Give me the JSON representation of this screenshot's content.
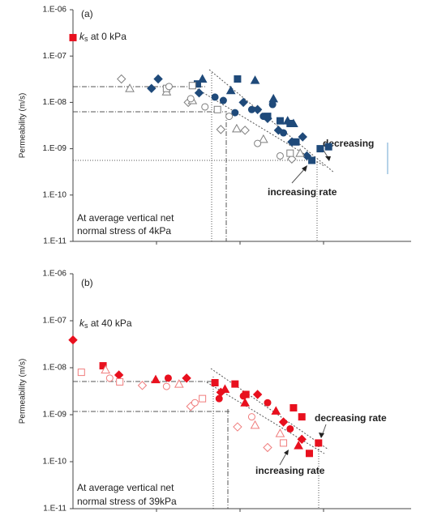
{
  "chart_data": [
    {
      "type": "scatter",
      "panel_label": "(a)",
      "ylabel": "Permeability (m/s)",
      "yscale": "log",
      "ylim": [
        1e-11,
        1e-06
      ],
      "yticks": [
        {
          "value": 1e-11,
          "label": "1.E-11"
        },
        {
          "value": 1e-10,
          "label": "1.E-10"
        },
        {
          "value": 1e-09,
          "label": "1.E-09"
        },
        {
          "value": 1e-08,
          "label": "1.E-08"
        },
        {
          "value": 1e-07,
          "label": "1.E-07"
        },
        {
          "value": 1e-06,
          "label": "1.E-06"
        }
      ],
      "xlim": [
        0,
        4
      ],
      "xticks": [
        1,
        2,
        3
      ],
      "ks_label": {
        "symbol": "k",
        "sub": "s",
        "text": " at 0 kPa"
      },
      "annotations": [
        "decreasing",
        "increasing rate"
      ],
      "note": [
        "At average vertical net",
        "normal stress of 4kPa"
      ],
      "series": [
        {
          "marker": "square",
          "filled": true,
          "color": "#e8101e",
          "x": [
            0
          ],
          "values": [
            2.5e-07
          ]
        },
        {
          "marker": "square",
          "filled": true,
          "color": "#1f4a7a",
          "x": [
            1.49,
            1.97,
            2.33,
            2.48,
            2.6,
            2.67,
            2.96,
            3.06,
            2.86
          ],
          "values": [
            2.5e-08,
            3.2e-08,
            5e-09,
            4e-09,
            3.5e-09,
            1.4e-09,
            1e-09,
            1.1e-09,
            5.6e-10
          ]
        },
        {
          "marker": "diamond",
          "filled": true,
          "color": "#1f4a7a",
          "x": [
            1.02,
            0.94,
            1.51,
            2.04,
            2.21,
            2.33,
            2.46,
            2.62,
            2.75,
            2.8
          ],
          "values": [
            3.2e-08,
            2e-08,
            1.6e-08,
            1e-08,
            7e-09,
            4.5e-09,
            2.5e-09,
            1.4e-09,
            1.8e-09,
            7e-10
          ]
        },
        {
          "marker": "triangle",
          "filled": true,
          "color": "#1f4a7a",
          "x": [
            1.55,
            1.89,
            2.18,
            2.4,
            2.57,
            2.64
          ],
          "values": [
            3.2e-08,
            1.8e-08,
            3e-08,
            1.2e-08,
            4e-09,
            3.5e-09
          ]
        },
        {
          "marker": "circle",
          "filled": true,
          "color": "#1f4a7a",
          "x": [
            1.7,
            1.8,
            1.94,
            2.14,
            2.28,
            2.39,
            2.52
          ],
          "values": [
            1.3e-08,
            1.1e-08,
            6e-09,
            7e-09,
            5e-09,
            9e-09,
            2.2e-09
          ]
        },
        {
          "marker": "diamond",
          "filled": false,
          "color": "#7f7f7f",
          "x": [
            0.58,
            1.38,
            1.77,
            2.06,
            2.62
          ],
          "values": [
            3.2e-08,
            1e-08,
            2.6e-09,
            2.5e-09,
            6e-10
          ]
        },
        {
          "marker": "triangle",
          "filled": false,
          "color": "#7f7f7f",
          "x": [
            0.68,
            1.12,
            1.43,
            1.96,
            2.28,
            2.72
          ],
          "values": [
            2e-08,
            1.7e-08,
            1.1e-08,
            2.7e-09,
            1.6e-09,
            8e-10
          ]
        },
        {
          "marker": "square",
          "filled": false,
          "color": "#7f7f7f",
          "x": [
            1.12,
            1.43,
            1.73,
            2.6
          ],
          "values": [
            2e-08,
            2.3e-08,
            7e-09,
            8e-10
          ]
        },
        {
          "marker": "circle",
          "filled": false,
          "color": "#7f7f7f",
          "x": [
            1.15,
            1.41,
            1.58,
            1.87,
            2.21,
            2.48
          ],
          "values": [
            2.2e-08,
            1.2e-08,
            8e-09,
            5e-09,
            1.3e-09,
            7e-10
          ]
        }
      ]
    },
    {
      "type": "scatter",
      "panel_label": "(b)",
      "ylabel": "Permeability (m/s)",
      "yscale": "log",
      "ylim": [
        1e-11,
        1e-06
      ],
      "yticks": [
        {
          "value": 1e-11,
          "label": "1.E-11"
        },
        {
          "value": 1e-10,
          "label": "1.E-10"
        },
        {
          "value": 1e-09,
          "label": "1.E-09"
        },
        {
          "value": 1e-08,
          "label": "1.E-08"
        },
        {
          "value": 1e-07,
          "label": "1.E-07"
        },
        {
          "value": 1e-06,
          "label": "1.E-06"
        }
      ],
      "xlim": [
        0,
        4
      ],
      "xticks": [
        1,
        2,
        3
      ],
      "ks_label": {
        "symbol": "k",
        "sub": "s",
        "text": " at 40 kPa"
      },
      "annotations": [
        "decreasing rate",
        "increasing rate"
      ],
      "note": [
        "At average vertical net",
        "normal stress of 39kPa"
      ],
      "series": [
        {
          "marker": "diamond",
          "filled": true,
          "color": "#e8101e",
          "x": [
            0
          ],
          "values": [
            3.9e-08
          ]
        },
        {
          "marker": "square",
          "filled": true,
          "color": "#e8101e",
          "x": [
            0.36,
            1.7,
            1.94,
            2.07,
            2.64,
            2.74,
            2.94,
            2.83
          ],
          "values": [
            1.1e-08,
            4.8e-09,
            4.5e-09,
            2.7e-09,
            1.4e-09,
            9e-10,
            2.5e-10,
            1.5e-10
          ]
        },
        {
          "marker": "diamond",
          "filled": true,
          "color": "#e8101e",
          "x": [
            0.55,
            1.36,
            1.77,
            2.21,
            2.52,
            2.74
          ],
          "values": [
            7e-09,
            6e-09,
            3e-09,
            2.7e-09,
            7e-10,
            3e-10
          ]
        },
        {
          "marker": "triangle",
          "filled": true,
          "color": "#e8101e",
          "x": [
            0.99,
            1.82,
            2.06,
            2.43,
            2.7
          ],
          "values": [
            5.6e-09,
            3.5e-09,
            1.8e-09,
            1.2e-09,
            2.2e-10
          ]
        },
        {
          "marker": "circle",
          "filled": true,
          "color": "#e8101e",
          "x": [
            1.14,
            1.75,
            2.04,
            2.33,
            2.6
          ],
          "values": [
            6e-09,
            2.2e-09,
            2.5e-09,
            1.8e-09,
            5e-10
          ]
        },
        {
          "marker": "square",
          "filled": false,
          "color": "#f07c7c",
          "x": [
            0.1,
            0.56,
            1.55,
            2.52
          ],
          "values": [
            8e-09,
            5e-09,
            2.2e-09,
            2.5e-10
          ]
        },
        {
          "marker": "diamond",
          "filled": false,
          "color": "#f07c7c",
          "x": [
            0.83,
            1.41,
            1.97,
            2.33
          ],
          "values": [
            4.2e-09,
            1.5e-09,
            5.5e-10,
            2e-10
          ]
        },
        {
          "marker": "triangle",
          "filled": false,
          "color": "#f07c7c",
          "x": [
            0.39,
            1.27,
            2.18,
            2.48
          ],
          "values": [
            9e-09,
            4.5e-09,
            6e-10,
            4e-10
          ]
        },
        {
          "marker": "circle",
          "filled": false,
          "color": "#f07c7c",
          "x": [
            0.44,
            1.12,
            1.46,
            2.14
          ],
          "values": [
            6e-09,
            4e-09,
            1.8e-09,
            9e-10
          ]
        }
      ]
    }
  ]
}
